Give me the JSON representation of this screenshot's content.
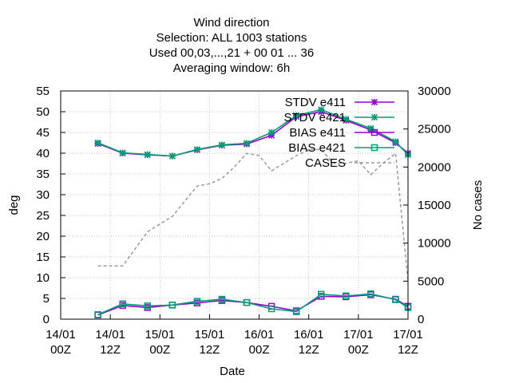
{
  "chart_data": {
    "type": "line",
    "title_lines": [
      "Wind direction",
      "Selection: ALL   1003 stations",
      "Used  00,03,...,21  + 00 01 ... 36",
      "Averaging window:  6h"
    ],
    "xlabel": "Date",
    "ylabel": "deg",
    "y2label": "No cases",
    "xticks": [
      {
        "x": 0,
        "line1": "14/01",
        "line2": "00Z"
      },
      {
        "x": 12,
        "line1": "14/01",
        "line2": "12Z"
      },
      {
        "x": 24,
        "line1": "15/01",
        "line2": "00Z"
      },
      {
        "x": 36,
        "line1": "15/01",
        "line2": "12Z"
      },
      {
        "x": 48,
        "line1": "16/01",
        "line2": "00Z"
      },
      {
        "x": 60,
        "line1": "16/01",
        "line2": "12Z"
      },
      {
        "x": 72,
        "line1": "17/01",
        "line2": "00Z"
      },
      {
        "x": 84,
        "line1": "17/01",
        "line2": "12Z"
      }
    ],
    "xlim": [
      0,
      84
    ],
    "ylim": [
      0,
      55
    ],
    "y2lim": [
      0,
      30000
    ],
    "yticks": [
      0,
      5,
      10,
      15,
      20,
      25,
      30,
      35,
      40,
      45,
      50,
      55
    ],
    "y2ticks": [
      0,
      5000,
      10000,
      15000,
      20000,
      25000,
      30000
    ],
    "legend_position": "top-right",
    "grid": true,
    "series": [
      {
        "name": "STDV e411",
        "axis": "y",
        "color": "#9400d3",
        "marker": "star",
        "dash": "",
        "x": [
          9,
          15,
          21,
          27,
          33,
          39,
          45,
          51,
          57,
          63,
          69,
          75,
          81,
          84
        ],
        "values": [
          42.3,
          40.0,
          39.6,
          39.3,
          40.8,
          41.9,
          42.2,
          44.3,
          48.8,
          50.0,
          47.9,
          45.6,
          42.5,
          40.0
        ]
      },
      {
        "name": "STDV e421",
        "axis": "y",
        "color": "#009e73",
        "marker": "star",
        "dash": "",
        "x": [
          9,
          15,
          21,
          27,
          33,
          39,
          45,
          51,
          57,
          63,
          69,
          75,
          81,
          84
        ],
        "values": [
          42.5,
          40.1,
          39.7,
          39.3,
          40.9,
          42.0,
          42.4,
          45.0,
          49.1,
          50.5,
          48.2,
          46.0,
          42.8,
          39.6
        ]
      },
      {
        "name": "BIAS e411",
        "axis": "y",
        "color": "#9400d3",
        "marker": "square",
        "dash": "",
        "x": [
          9,
          15,
          21,
          27,
          33,
          39,
          45,
          51,
          57,
          63,
          69,
          75,
          81,
          84
        ],
        "values": [
          1.0,
          3.3,
          2.8,
          3.4,
          3.9,
          4.5,
          4.0,
          3.1,
          2.0,
          5.5,
          5.4,
          5.9,
          4.8,
          3.1
        ]
      },
      {
        "name": "BIAS e421",
        "axis": "y",
        "color": "#009e73",
        "marker": "square",
        "dash": "",
        "x": [
          9,
          15,
          21,
          27,
          33,
          39,
          45,
          51,
          57,
          63,
          69,
          75,
          81,
          84
        ],
        "values": [
          1.1,
          3.7,
          3.2,
          3.4,
          4.3,
          4.8,
          4.0,
          2.5,
          1.8,
          6.0,
          5.6,
          6.1,
          4.7,
          2.8
        ]
      },
      {
        "name": "CASES",
        "axis": "y2",
        "color": "#999999",
        "marker": "none",
        "dash": "4,3",
        "x": [
          9,
          15,
          21,
          24,
          27,
          30,
          33,
          36,
          39,
          42,
          45,
          48,
          51,
          54,
          57,
          60,
          63,
          66,
          69,
          72,
          75,
          78,
          81,
          84
        ],
        "values": [
          7000,
          7000,
          11500,
          12500,
          13500,
          15500,
          17500,
          17800,
          18500,
          20000,
          21800,
          21500,
          19500,
          20500,
          21500,
          22300,
          22300,
          20500,
          20500,
          20800,
          19000,
          20500,
          21800,
          5000
        ]
      }
    ]
  }
}
